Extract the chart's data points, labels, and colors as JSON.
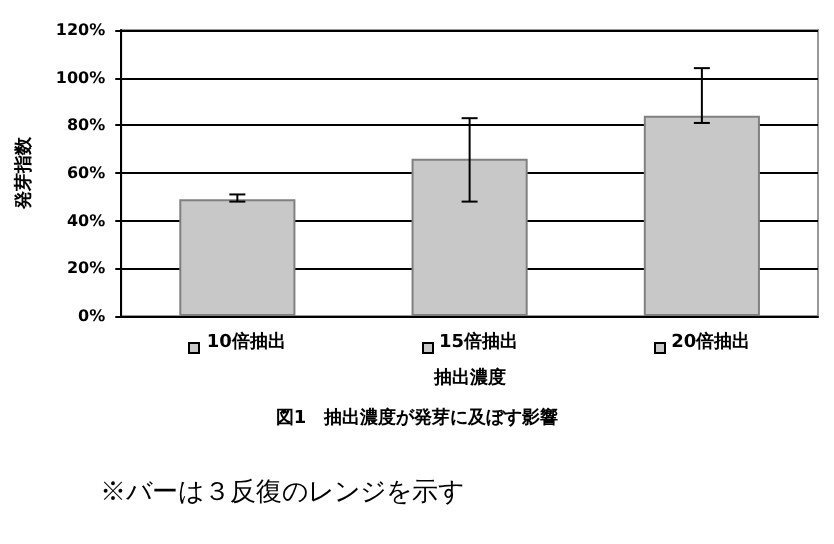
{
  "chart_data": {
    "type": "bar",
    "title": "図1　抽出濃度が発芽に及ぼす影響",
    "xlabel": "抽出濃度",
    "ylabel": "発芽指数",
    "categories": [
      "10倍抽出",
      "15倍抽出",
      "20倍抽出"
    ],
    "values": [
      49,
      66,
      84
    ],
    "color": "#c8c8c8",
    "errors": [
      [
        48,
        51
      ],
      [
        48,
        83
      ],
      [
        81,
        104
      ]
    ],
    "ylim": [
      0,
      120
    ],
    "yticks": [
      {
        "value": 0,
        "label": "0%"
      },
      {
        "value": 20,
        "label": "20%"
      },
      {
        "value": 40,
        "label": "40%"
      },
      {
        "value": 60,
        "label": "60%"
      },
      {
        "value": 80,
        "label": "80%"
      },
      {
        "value": 100,
        "label": "100%"
      },
      {
        "value": 120,
        "label": "120%"
      }
    ],
    "grid": "y",
    "annotations": [
      "※バーは３反復のレンジを示す"
    ]
  }
}
